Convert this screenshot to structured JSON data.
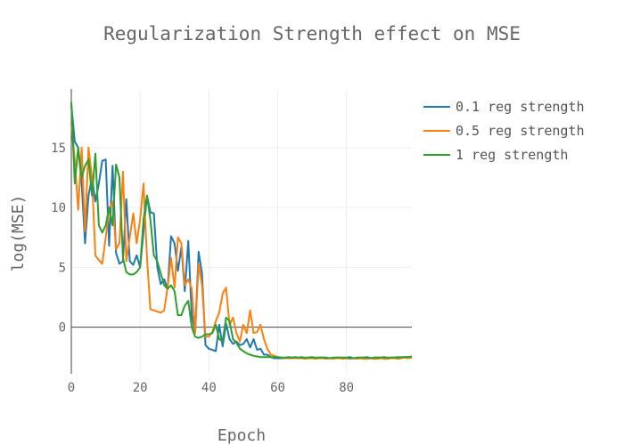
{
  "chart_data": {
    "type": "line",
    "title": "Regularization Strength effect on MSE",
    "xlabel": "Epoch",
    "ylabel": "log(MSE)",
    "xlim": [
      0,
      99
    ],
    "ylim": [
      -3.9,
      19.9
    ],
    "xticks": [
      "0",
      "20",
      "40",
      "60",
      "80"
    ],
    "yticks": [
      "0",
      "5",
      "10",
      "15"
    ],
    "grid": true,
    "legend_position": "top-right",
    "x": [
      0,
      1,
      2,
      3,
      4,
      5,
      6,
      7,
      8,
      9,
      10,
      11,
      12,
      13,
      14,
      15,
      16,
      17,
      18,
      19,
      20,
      21,
      22,
      23,
      24,
      25,
      26,
      27,
      28,
      29,
      30,
      31,
      32,
      33,
      34,
      35,
      36,
      37,
      38,
      39,
      40,
      41,
      42,
      43,
      44,
      45,
      46,
      47,
      48,
      49,
      50,
      51,
      52,
      53,
      54,
      55,
      56,
      57,
      58,
      59,
      60,
      61,
      62,
      63,
      64,
      65,
      66,
      67,
      68,
      69,
      70,
      71,
      72,
      73,
      74,
      75,
      76,
      77,
      78,
      79,
      80,
      81,
      82,
      83,
      84,
      85,
      86,
      87,
      88,
      89,
      90,
      91,
      92,
      93,
      94,
      95,
      96,
      97,
      98,
      99
    ],
    "series": [
      {
        "name": "0.1 reg strength",
        "color": "#1f77b4",
        "values": [
          18.6,
          15.5,
          15.0,
          12.0,
          7.0,
          11.0,
          12.5,
          10.5,
          12.0,
          13.9,
          14.0,
          6.8,
          13.5,
          6.2,
          5.3,
          5.5,
          10.7,
          5.5,
          5.2,
          6.0,
          5.0,
          8.0,
          11.0,
          9.6,
          9.5,
          5.0,
          3.6,
          4.0,
          3.2,
          7.6,
          7.0,
          4.7,
          6.7,
          3.0,
          7.2,
          1.0,
          -0.5,
          6.3,
          4.5,
          -1.5,
          -1.8,
          -1.9,
          -2.0,
          0.2,
          -1.6,
          0.3,
          -1.0,
          -1.4,
          -1.2,
          -1.5,
          -1.4,
          -1.0,
          -1.7,
          -1.0,
          -1.9,
          -1.8,
          -2.3,
          -2.3,
          -2.5,
          -2.6,
          -2.6,
          -2.6,
          -2.6,
          -2.5,
          -2.55,
          -2.6,
          -2.55,
          -2.5,
          -2.6,
          -2.55,
          -2.5,
          -2.6,
          -2.55,
          -2.55,
          -2.55,
          -2.6,
          -2.6,
          -2.55,
          -2.55,
          -2.6,
          -2.55,
          -2.5,
          -2.6,
          -2.6,
          -2.55,
          -2.55,
          -2.5,
          -2.6,
          -2.55,
          -2.55,
          -2.55,
          -2.5,
          -2.6,
          -2.55,
          -2.55,
          -2.5,
          -2.55,
          -2.5,
          -2.5,
          -2.45
        ]
      },
      {
        "name": "0.5 reg strength",
        "color": "#ff7f0e",
        "values": [
          17.0,
          14.0,
          9.8,
          15.0,
          8.0,
          15.0,
          12.5,
          6.0,
          5.6,
          5.3,
          7.5,
          9.8,
          10.5,
          6.5,
          7.0,
          13.0,
          5.5,
          7.5,
          9.5,
          7.0,
          9.0,
          12.0,
          5.8,
          1.5,
          1.4,
          1.3,
          1.2,
          1.4,
          3.3,
          5.8,
          3.3,
          7.5,
          7.0,
          3.5,
          4.0,
          3.2,
          -0.5,
          5.3,
          3.5,
          -0.8,
          -0.8,
          -0.4,
          0.5,
          1.2,
          2.8,
          3.3,
          0.2,
          0.8,
          -0.5,
          -1.2,
          0.2,
          -0.5,
          1.4,
          -0.5,
          -0.4,
          0.2,
          -1.0,
          -1.8,
          -2.3,
          -2.4,
          -2.5,
          -2.55,
          -2.6,
          -2.6,
          -2.6,
          -2.6,
          -2.6,
          -2.6,
          -2.65,
          -2.6,
          -2.6,
          -2.65,
          -2.6,
          -2.6,
          -2.65,
          -2.6,
          -2.65,
          -2.6,
          -2.6,
          -2.65,
          -2.6,
          -2.65,
          -2.6,
          -2.65,
          -2.6,
          -2.65,
          -2.65,
          -2.6,
          -2.65,
          -2.65,
          -2.6,
          -2.65,
          -2.65,
          -2.6,
          -2.6,
          -2.65,
          -2.6,
          -2.55,
          -2.6,
          -2.55
        ]
      },
      {
        "name": "1 reg strength",
        "color": "#2ca02c",
        "values": [
          18.8,
          12.0,
          15.0,
          12.5,
          13.5,
          14.0,
          11.0,
          14.5,
          8.5,
          7.9,
          8.5,
          10.0,
          8.5,
          13.6,
          12.5,
          5.8,
          4.6,
          4.4,
          4.4,
          4.6,
          5.0,
          9.0,
          11.0,
          9.0,
          6.0,
          5.5,
          4.5,
          3.5,
          3.2,
          3.5,
          3.0,
          1.0,
          1.0,
          1.8,
          2.2,
          0.0,
          -0.8,
          -0.9,
          -0.8,
          -0.6,
          -0.6,
          -0.5,
          0.2,
          -1.0,
          -1.2,
          0.8,
          0.5,
          -1.0,
          -1.3,
          -1.8,
          -2.0,
          -2.2,
          -2.3,
          -2.4,
          -2.45,
          -2.5,
          -2.5,
          -2.5,
          -2.5,
          -2.5,
          -2.5,
          -2.55,
          -2.55,
          -2.55,
          -2.55,
          -2.5,
          -2.55,
          -2.55,
          -2.55,
          -2.55,
          -2.55,
          -2.55,
          -2.55,
          -2.55,
          -2.55,
          -2.6,
          -2.55,
          -2.55,
          -2.55,
          -2.55,
          -2.55,
          -2.6,
          -2.6,
          -2.55,
          -2.55,
          -2.55,
          -2.55,
          -2.6,
          -2.55,
          -2.55,
          -2.55,
          -2.55,
          -2.55,
          -2.55,
          -2.55,
          -2.55,
          -2.5,
          -2.5,
          -2.5,
          -2.45
        ]
      }
    ]
  }
}
